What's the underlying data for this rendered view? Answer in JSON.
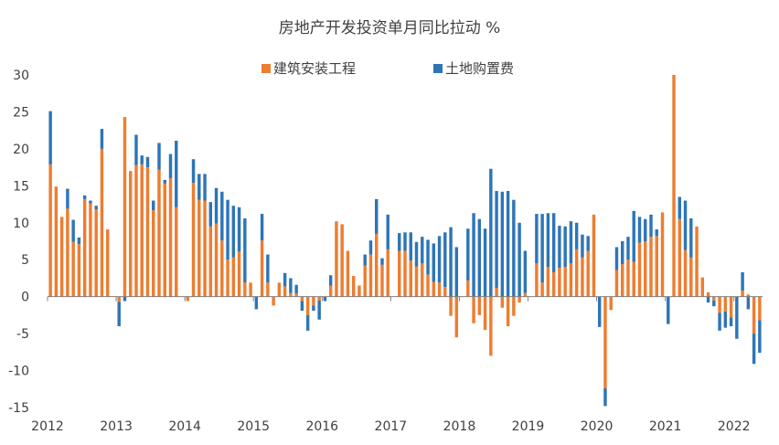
{
  "chart_data": {
    "type": "bar",
    "stacked": true,
    "title": "房地产开发投资单月同比拉动 %",
    "xlabel": "",
    "ylabel": "",
    "ylim": [
      -15,
      30
    ],
    "yticks": [
      30,
      25,
      20,
      15,
      10,
      5,
      0,
      -5,
      -10,
      -15
    ],
    "x_tick_labels": [
      "2012",
      "2013",
      "2014",
      "2015",
      "2016",
      "2017",
      "2018",
      "2019",
      "2020",
      "2021",
      "2022"
    ],
    "legend_position": "top",
    "grid": false,
    "x_start": "2012-01",
    "x_end": "2022-04",
    "colors": {
      "construction": "#ED7D31",
      "land": "#2E75B6"
    },
    "series": [
      {
        "name": "建筑安装工程",
        "key": "construction",
        "values": [
          17.9,
          14.9,
          10.8,
          11.9,
          7.4,
          7.1,
          13.2,
          12.6,
          11.8,
          20.0,
          9.1,
          0.0,
          -0.7,
          24.3,
          17.0,
          17.8,
          17.9,
          17.5,
          11.7,
          17.2,
          15.3,
          16.0,
          12.1,
          0.0,
          -0.6,
          15.4,
          13.1,
          13.0,
          9.5,
          9.9,
          7.6,
          5.0,
          5.3,
          6.1,
          1.9,
          1.9,
          0.0,
          7.6,
          1.9,
          -1.2,
          1.9,
          1.4,
          0.5,
          0.4,
          -0.6,
          -2.5,
          -1.2,
          -0.5,
          0.0,
          1.5,
          10.2,
          9.8,
          6.2,
          2.8,
          1.5,
          4.2,
          5.7,
          8.5,
          4.3,
          6.4,
          0.0,
          6.2,
          6.2,
          4.9,
          4.1,
          4.5,
          3.0,
          2.0,
          1.9,
          1.3,
          -2.6,
          -5.5,
          0.0,
          2.2,
          -3.6,
          -2.5,
          -4.5,
          -8.0,
          1.2,
          -1.5,
          -4.0,
          -2.6,
          -0.8,
          0.5,
          0.0,
          4.5,
          1.9,
          4.0,
          3.3,
          3.9,
          4.0,
          4.5,
          6.4,
          5.3,
          6.2,
          11.1,
          0.0,
          -12.4,
          -1.8,
          3.6,
          4.4,
          5.0,
          4.7,
          7.3,
          7.5,
          8.1,
          8.2,
          11.4,
          0.0,
          30.0,
          10.5,
          6.3,
          5.3,
          9.5,
          2.6,
          0.6,
          -0.5,
          -2.2,
          -2.0,
          -2.8,
          0.0,
          0.8,
          0.3,
          -5.0,
          -3.2
        ]
      },
      {
        "name": "土地购置费",
        "key": "land",
        "values": [
          7.2,
          0.0,
          0.0,
          2.7,
          3.0,
          0.9,
          0.5,
          0.4,
          0.5,
          2.7,
          0.0,
          0.0,
          -3.3,
          -0.6,
          0.0,
          4.1,
          1.2,
          1.4,
          1.3,
          3.6,
          0.5,
          3.3,
          9.0,
          0.0,
          0.0,
          3.2,
          3.5,
          3.6,
          3.3,
          4.8,
          6.6,
          8.1,
          7.0,
          6.0,
          8.7,
          0.0,
          -1.7,
          3.6,
          3.8,
          0.0,
          0.0,
          1.8,
          2.0,
          1.2,
          -1.3,
          -2.1,
          -0.7,
          -2.6,
          -0.6,
          1.4,
          0.0,
          0.0,
          0.0,
          0.0,
          0.0,
          1.5,
          1.9,
          4.7,
          0.9,
          4.7,
          0.0,
          2.4,
          2.5,
          3.8,
          3.3,
          3.6,
          4.7,
          5.2,
          6.3,
          7.4,
          9.4,
          6.7,
          0.0,
          7.0,
          11.3,
          10.5,
          9.2,
          17.3,
          13.1,
          14.2,
          14.3,
          13.1,
          10.0,
          5.7,
          0.0,
          6.7,
          9.3,
          7.3,
          8.0,
          5.7,
          5.5,
          5.7,
          3.6,
          3.1,
          2.0,
          0.0,
          -4.1,
          -2.4,
          0.0,
          3.1,
          3.1,
          3.1,
          6.9,
          3.5,
          3.0,
          3.0,
          0.9,
          0.0,
          -3.7,
          0.0,
          3.0,
          6.7,
          5.3,
          0.0,
          0.0,
          -0.8,
          -0.8,
          -2.4,
          -2.2,
          -1.2,
          -5.7,
          2.5,
          -1.7,
          -4.1,
          -4.4
        ]
      }
    ]
  }
}
